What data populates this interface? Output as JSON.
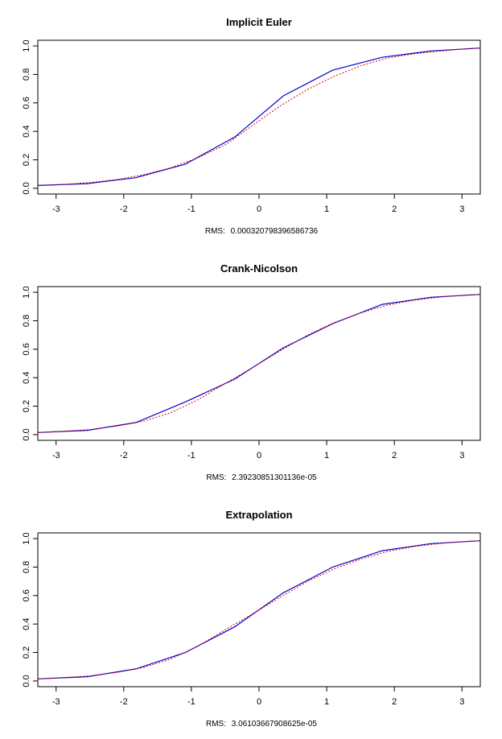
{
  "chart_data": [
    {
      "type": "line",
      "title": "Implicit Euler",
      "rms_prefix": "RMS:",
      "rms_value": "0.000320798396586736",
      "xlim": [
        -3.27,
        3.27
      ],
      "ylim": [
        -0.04,
        1.04
      ],
      "x_ticks": [
        -3,
        -2,
        -1,
        0,
        1,
        2,
        3
      ],
      "y_ticks": [
        "0.0",
        "0.2",
        "0.4",
        "0.6",
        "0.8",
        "1.0"
      ],
      "grid": false,
      "series": [
        {
          "color": "#0000cc",
          "dash": "solid",
          "x": [
            -3.27,
            -2.54,
            -1.82,
            -1.09,
            -0.36,
            0.36,
            1.09,
            1.82,
            2.54,
            3.27
          ],
          "y": [
            0.02,
            0.033,
            0.075,
            0.17,
            0.36,
            0.65,
            0.83,
            0.92,
            0.965,
            0.985
          ]
        },
        {
          "color": "#dd0000",
          "dash": "dotted",
          "x": [
            -3.27,
            -2.9,
            -2.5,
            -2.1,
            -1.7,
            -1.3,
            -0.9,
            -0.5,
            -0.1,
            0.3,
            0.7,
            1.1,
            1.5,
            1.9,
            2.3,
            2.7,
            3.1,
            3.27
          ],
          "y": [
            0.018,
            0.027,
            0.041,
            0.062,
            0.096,
            0.145,
            0.215,
            0.305,
            0.44,
            0.575,
            0.69,
            0.785,
            0.86,
            0.915,
            0.945,
            0.965,
            0.982,
            0.985
          ]
        }
      ]
    },
    {
      "type": "line",
      "title": "Crank-Nicolson",
      "rms_prefix": "RMS:",
      "rms_value": "2.39230851301136e-05",
      "xlim": [
        -3.27,
        3.27
      ],
      "ylim": [
        -0.04,
        1.04
      ],
      "x_ticks": [
        -3,
        -2,
        -1,
        0,
        1,
        2,
        3
      ],
      "y_ticks": [
        "0.0",
        "0.2",
        "0.4",
        "0.6",
        "0.8",
        "1.0"
      ],
      "grid": false,
      "series": [
        {
          "color": "#0000cc",
          "dash": "solid",
          "x": [
            -3.27,
            -2.54,
            -1.82,
            -1.09,
            -0.36,
            0.36,
            1.09,
            1.82,
            2.54,
            3.27
          ],
          "y": [
            0.015,
            0.03,
            0.085,
            0.23,
            0.39,
            0.61,
            0.78,
            0.915,
            0.965,
            0.985
          ]
        },
        {
          "color": "#dd0000",
          "dash": "dotted",
          "x": [
            -3.27,
            -2.9,
            -2.5,
            -2.1,
            -1.7,
            -1.3,
            -0.9,
            -0.5,
            -0.1,
            0.3,
            0.7,
            1.1,
            1.5,
            1.9,
            2.3,
            2.7,
            3.1,
            3.27
          ],
          "y": [
            0.015,
            0.024,
            0.036,
            0.06,
            0.095,
            0.155,
            0.245,
            0.36,
            0.47,
            0.585,
            0.695,
            0.785,
            0.855,
            0.91,
            0.945,
            0.967,
            0.982,
            0.985
          ]
        }
      ]
    },
    {
      "type": "line",
      "title": "Extrapolation",
      "rms_prefix": "RMS:",
      "rms_value": "3.06103667908625e-05",
      "xlim": [
        -3.27,
        3.27
      ],
      "ylim": [
        -0.04,
        1.04
      ],
      "x_ticks": [
        -3,
        -2,
        -1,
        0,
        1,
        2,
        3
      ],
      "y_ticks": [
        "0.0",
        "0.2",
        "0.4",
        "0.6",
        "0.8",
        "1.0"
      ],
      "grid": false,
      "series": [
        {
          "color": "#0000cc",
          "dash": "solid",
          "x": [
            -3.27,
            -2.54,
            -1.82,
            -1.09,
            -0.36,
            0.36,
            1.09,
            1.82,
            2.54,
            3.27
          ],
          "y": [
            0.015,
            0.03,
            0.085,
            0.2,
            0.38,
            0.62,
            0.8,
            0.915,
            0.965,
            0.985
          ]
        },
        {
          "color": "#dd0000",
          "dash": "dotted",
          "x": [
            -3.27,
            -2.9,
            -2.5,
            -2.1,
            -1.7,
            -1.3,
            -0.9,
            -0.5,
            -0.1,
            0.3,
            0.7,
            1.1,
            1.5,
            1.9,
            2.3,
            2.7,
            3.1,
            3.27
          ],
          "y": [
            0.015,
            0.024,
            0.036,
            0.06,
            0.095,
            0.155,
            0.245,
            0.36,
            0.47,
            0.585,
            0.695,
            0.785,
            0.855,
            0.91,
            0.945,
            0.967,
            0.982,
            0.985
          ]
        }
      ]
    }
  ]
}
